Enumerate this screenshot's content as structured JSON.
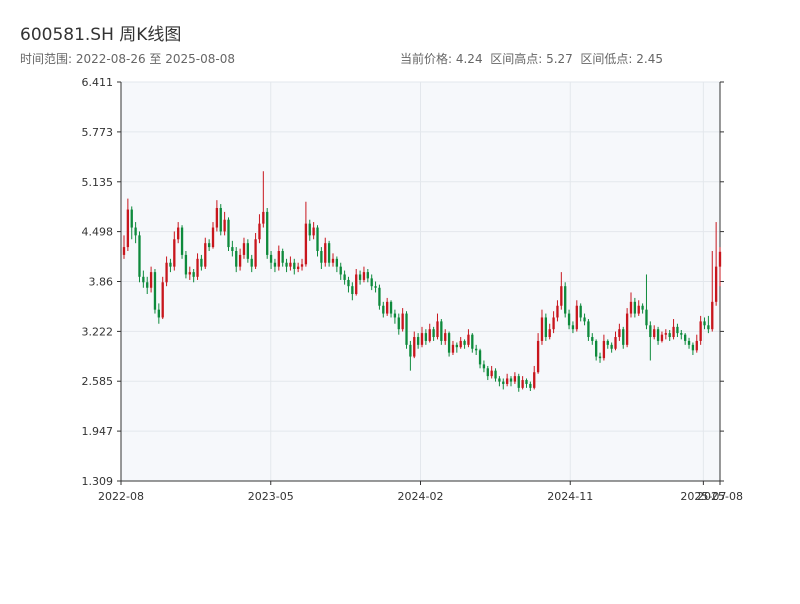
{
  "chart_data": {
    "type": "candlestick",
    "title": "600581.SH 周K线图",
    "subtitle": "时间范围: 2022-08-26 至 2025-08-08",
    "info": "当前价格: 4.24  区间高点: 5.27  区间低点: 2.45",
    "up_color": "#c8161d",
    "down_color": "#0e8a3c",
    "xlim": [
      "2022-08",
      "2025-08"
    ],
    "xticks": [
      "2022-08",
      "2023-05",
      "2024-02",
      "2024-11",
      "2025-07",
      "2025-08"
    ],
    "ylim": [
      1.309,
      6.411
    ],
    "yticks": [
      1.309,
      1.947,
      2.585,
      3.222,
      3.86,
      4.498,
      5.135,
      5.773,
      6.411
    ],
    "grid": true,
    "candles": [
      [
        4.2,
        4.45,
        4.15,
        4.3
      ],
      [
        4.3,
        4.92,
        4.25,
        4.78
      ],
      [
        4.78,
        4.82,
        4.4,
        4.55
      ],
      [
        4.55,
        4.62,
        4.35,
        4.45
      ],
      [
        4.45,
        4.5,
        3.85,
        3.92
      ],
      [
        3.92,
        4.0,
        3.78,
        3.85
      ],
      [
        3.85,
        3.92,
        3.7,
        3.78
      ],
      [
        3.78,
        4.05,
        3.72,
        3.98
      ],
      [
        3.98,
        4.02,
        3.45,
        3.5
      ],
      [
        3.5,
        3.58,
        3.32,
        3.4
      ],
      [
        3.4,
        3.92,
        3.38,
        3.85
      ],
      [
        3.85,
        4.18,
        3.8,
        4.1
      ],
      [
        4.1,
        4.15,
        3.98,
        4.05
      ],
      [
        4.05,
        4.5,
        4.0,
        4.4
      ],
      [
        4.4,
        4.62,
        4.35,
        4.55
      ],
      [
        4.55,
        4.58,
        4.15,
        4.2
      ],
      [
        4.2,
        4.25,
        3.9,
        3.95
      ],
      [
        3.95,
        4.05,
        3.88,
        3.98
      ],
      [
        3.98,
        4.02,
        3.85,
        3.92
      ],
      [
        3.92,
        4.22,
        3.88,
        4.15
      ],
      [
        4.15,
        4.2,
        4.0,
        4.05
      ],
      [
        4.05,
        4.42,
        4.02,
        4.35
      ],
      [
        4.35,
        4.4,
        4.25,
        4.3
      ],
      [
        4.3,
        4.62,
        4.28,
        4.55
      ],
      [
        4.55,
        4.9,
        4.5,
        4.8
      ],
      [
        4.8,
        4.85,
        4.45,
        4.5
      ],
      [
        4.5,
        4.75,
        4.45,
        4.65
      ],
      [
        4.65,
        4.68,
        4.25,
        4.3
      ],
      [
        4.3,
        4.38,
        4.18,
        4.25
      ],
      [
        4.25,
        4.3,
        3.98,
        4.05
      ],
      [
        4.05,
        4.28,
        4.0,
        4.2
      ],
      [
        4.2,
        4.42,
        4.15,
        4.35
      ],
      [
        4.35,
        4.4,
        4.1,
        4.15
      ],
      [
        4.15,
        4.2,
        3.98,
        4.05
      ],
      [
        4.05,
        4.48,
        4.02,
        4.4
      ],
      [
        4.4,
        4.72,
        4.35,
        4.6
      ],
      [
        4.6,
        5.27,
        4.55,
        4.75
      ],
      [
        4.75,
        4.8,
        4.15,
        4.2
      ],
      [
        4.2,
        4.25,
        4.02,
        4.1
      ],
      [
        4.1,
        4.15,
        3.98,
        4.05
      ],
      [
        4.05,
        4.32,
        4.0,
        4.25
      ],
      [
        4.25,
        4.28,
        4.05,
        4.1
      ],
      [
        4.1,
        4.15,
        3.98,
        4.05
      ],
      [
        4.05,
        4.18,
        4.0,
        4.1
      ],
      [
        4.1,
        4.15,
        3.95,
        4.02
      ],
      [
        4.02,
        4.1,
        3.98,
        4.05
      ],
      [
        4.05,
        4.15,
        4.0,
        4.08
      ],
      [
        4.08,
        4.88,
        4.05,
        4.6
      ],
      [
        4.6,
        4.65,
        4.38,
        4.45
      ],
      [
        4.45,
        4.62,
        4.4,
        4.55
      ],
      [
        4.55,
        4.58,
        4.18,
        4.25
      ],
      [
        4.25,
        4.3,
        4.02,
        4.1
      ],
      [
        4.1,
        4.42,
        4.05,
        4.35
      ],
      [
        4.35,
        4.38,
        4.05,
        4.1
      ],
      [
        4.1,
        4.22,
        4.05,
        4.15
      ],
      [
        4.15,
        4.18,
        3.98,
        4.05
      ],
      [
        4.05,
        4.1,
        3.88,
        3.95
      ],
      [
        3.95,
        4.0,
        3.82,
        3.88
      ],
      [
        3.88,
        3.92,
        3.72,
        3.8
      ],
      [
        3.8,
        3.85,
        3.62,
        3.7
      ],
      [
        3.7,
        4.02,
        3.68,
        3.95
      ],
      [
        3.95,
        4.0,
        3.82,
        3.88
      ],
      [
        3.88,
        4.05,
        3.85,
        3.98
      ],
      [
        3.98,
        4.02,
        3.85,
        3.9
      ],
      [
        3.9,
        3.95,
        3.75,
        3.8
      ],
      [
        3.8,
        3.86,
        3.72,
        3.78
      ],
      [
        3.78,
        3.82,
        3.5,
        3.55
      ],
      [
        3.55,
        3.6,
        3.4,
        3.45
      ],
      [
        3.45,
        3.65,
        3.42,
        3.6
      ],
      [
        3.6,
        3.62,
        3.4,
        3.45
      ],
      [
        3.45,
        3.5,
        3.32,
        3.4
      ],
      [
        3.4,
        3.45,
        3.18,
        3.25
      ],
      [
        3.25,
        3.52,
        3.22,
        3.45
      ],
      [
        3.45,
        3.48,
        3.0,
        3.05
      ],
      [
        3.05,
        3.1,
        2.72,
        2.9
      ],
      [
        2.9,
        3.22,
        2.88,
        3.15
      ],
      [
        3.15,
        3.2,
        3.0,
        3.05
      ],
      [
        3.05,
        3.28,
        3.02,
        3.2
      ],
      [
        3.2,
        3.25,
        3.05,
        3.1
      ],
      [
        3.1,
        3.32,
        3.08,
        3.25
      ],
      [
        3.25,
        3.28,
        3.1,
        3.15
      ],
      [
        3.15,
        3.45,
        3.12,
        3.35
      ],
      [
        3.35,
        3.38,
        3.05,
        3.1
      ],
      [
        3.1,
        3.25,
        3.05,
        3.2
      ],
      [
        3.2,
        3.22,
        2.9,
        2.95
      ],
      [
        2.95,
        3.1,
        2.92,
        3.05
      ],
      [
        3.05,
        3.08,
        2.95,
        3.02
      ],
      [
        3.02,
        3.15,
        3.0,
        3.1
      ],
      [
        3.1,
        3.12,
        3.0,
        3.05
      ],
      [
        3.05,
        3.25,
        3.02,
        3.18
      ],
      [
        3.18,
        3.2,
        2.95,
        3.0
      ],
      [
        3.0,
        3.05,
        2.92,
        2.98
      ],
      [
        2.98,
        3.0,
        2.75,
        2.8
      ],
      [
        2.8,
        2.85,
        2.7,
        2.75
      ],
      [
        2.75,
        2.78,
        2.6,
        2.65
      ],
      [
        2.65,
        2.78,
        2.62,
        2.72
      ],
      [
        2.72,
        2.75,
        2.58,
        2.62
      ],
      [
        2.62,
        2.65,
        2.52,
        2.58
      ],
      [
        2.58,
        2.62,
        2.48,
        2.55
      ],
      [
        2.55,
        2.68,
        2.52,
        2.62
      ],
      [
        2.62,
        2.65,
        2.52,
        2.58
      ],
      [
        2.58,
        2.7,
        2.55,
        2.65
      ],
      [
        2.65,
        2.68,
        2.45,
        2.5
      ],
      [
        2.5,
        2.65,
        2.48,
        2.6
      ],
      [
        2.6,
        2.62,
        2.5,
        2.55
      ],
      [
        2.55,
        2.58,
        2.46,
        2.5
      ],
      [
        2.5,
        2.78,
        2.48,
        2.7
      ],
      [
        2.7,
        3.2,
        2.68,
        3.1
      ],
      [
        3.1,
        3.5,
        3.05,
        3.4
      ],
      [
        3.4,
        3.45,
        3.1,
        3.15
      ],
      [
        3.15,
        3.32,
        3.12,
        3.25
      ],
      [
        3.25,
        3.48,
        3.2,
        3.4
      ],
      [
        3.4,
        3.62,
        3.35,
        3.55
      ],
      [
        3.55,
        3.98,
        3.5,
        3.8
      ],
      [
        3.8,
        3.85,
        3.4,
        3.45
      ],
      [
        3.45,
        3.5,
        3.25,
        3.3
      ],
      [
        3.3,
        3.35,
        3.2,
        3.25
      ],
      [
        3.25,
        3.62,
        3.22,
        3.55
      ],
      [
        3.55,
        3.58,
        3.35,
        3.4
      ],
      [
        3.4,
        3.45,
        3.3,
        3.35
      ],
      [
        3.35,
        3.38,
        3.1,
        3.15
      ],
      [
        3.15,
        3.2,
        3.05,
        3.1
      ],
      [
        3.1,
        3.12,
        2.85,
        2.9
      ],
      [
        2.9,
        2.95,
        2.82,
        2.88
      ],
      [
        2.88,
        3.18,
        2.85,
        3.1
      ],
      [
        3.1,
        3.12,
        3.0,
        3.05
      ],
      [
        3.05,
        3.08,
        2.95,
        3.0
      ],
      [
        3.0,
        3.22,
        2.98,
        3.15
      ],
      [
        3.15,
        3.32,
        3.1,
        3.25
      ],
      [
        3.25,
        3.28,
        3.0,
        3.05
      ],
      [
        3.05,
        3.52,
        3.02,
        3.45
      ],
      [
        3.45,
        3.72,
        3.4,
        3.6
      ],
      [
        3.6,
        3.65,
        3.4,
        3.45
      ],
      [
        3.45,
        3.62,
        3.42,
        3.55
      ],
      [
        3.55,
        3.58,
        3.45,
        3.5
      ],
      [
        3.5,
        3.95,
        3.25,
        3.3
      ],
      [
        3.3,
        3.35,
        2.85,
        3.15
      ],
      [
        3.15,
        3.3,
        3.12,
        3.25
      ],
      [
        3.25,
        3.28,
        3.05,
        3.1
      ],
      [
        3.1,
        3.22,
        3.08,
        3.18
      ],
      [
        3.18,
        3.25,
        3.12,
        3.2
      ],
      [
        3.2,
        3.24,
        3.1,
        3.15
      ],
      [
        3.15,
        3.38,
        3.12,
        3.28
      ],
      [
        3.28,
        3.32,
        3.15,
        3.2
      ],
      [
        3.2,
        3.24,
        3.12,
        3.18
      ],
      [
        3.18,
        3.2,
        3.05,
        3.1
      ],
      [
        3.1,
        3.14,
        3.0,
        3.05
      ],
      [
        3.05,
        3.08,
        2.92,
        2.98
      ],
      [
        2.98,
        3.18,
        2.95,
        3.1
      ],
      [
        3.1,
        3.42,
        3.05,
        3.35
      ],
      [
        3.35,
        3.4,
        3.25,
        3.3
      ],
      [
        3.3,
        3.42,
        3.2,
        3.25
      ],
      [
        3.25,
        4.25,
        3.22,
        3.6
      ],
      [
        3.6,
        4.62,
        3.55,
        4.05
      ],
      [
        4.05,
        4.3,
        3.8,
        4.24
      ]
    ]
  }
}
